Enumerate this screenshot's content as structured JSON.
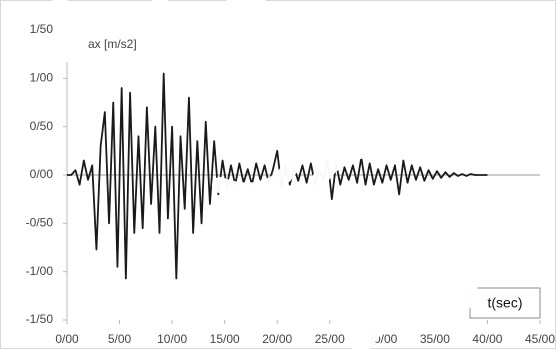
{
  "chart_data": {
    "type": "line",
    "y_label": "ax [m/s2]",
    "x_label": "t(sec)",
    "x": [
      0,
      0.4,
      0.8,
      1.2,
      1.6,
      2,
      2.4,
      2.8,
      3.2,
      3.6,
      4,
      4.4,
      4.8,
      5.2,
      5.6,
      6,
      6.4,
      6.8,
      7.2,
      7.6,
      8,
      8.4,
      8.8,
      9.2,
      9.6,
      10,
      10.4,
      10.8,
      11.2,
      11.6,
      12,
      12.4,
      12.8,
      13.2,
      13.6,
      14,
      14.4,
      14.8,
      15.2,
      15.6,
      16,
      16.4,
      16.8,
      17.2,
      17.6,
      18,
      18.4,
      18.8,
      19.2,
      19.6,
      20,
      20.4,
      20.8,
      21.2,
      21.6,
      22,
      22.4,
      22.8,
      23.2,
      23.6,
      24,
      24.4,
      24.8,
      25.2,
      25.6,
      26,
      26.4,
      26.8,
      27.2,
      27.6,
      28,
      28.4,
      28.8,
      29.2,
      29.6,
      30,
      30.4,
      30.8,
      31.2,
      31.6,
      32,
      32.4,
      32.8,
      33.2,
      33.6,
      34,
      34.4,
      34.8,
      35.2,
      35.6,
      36,
      36.4,
      36.8,
      37.2,
      37.6,
      38,
      38.4,
      38.8,
      39.2,
      39.6,
      40
    ],
    "series": [
      {
        "color": "#1a1a1a",
        "values": [
          0,
          0,
          0.05,
          -0.1,
          0.15,
          -0.05,
          0.1,
          -0.77,
          0.3,
          0.65,
          -0.5,
          0.75,
          -0.95,
          0.9,
          -1.07,
          0.85,
          -0.6,
          0.4,
          -0.55,
          0.7,
          -0.3,
          0.5,
          -0.6,
          1.05,
          -0.45,
          0.5,
          -1.07,
          0.4,
          -0.35,
          0.8,
          -0.6,
          0.35,
          -0.5,
          0.55,
          -0.3,
          0.35,
          -0.2,
          0.15,
          -0.12,
          0.1,
          -0.1,
          0.12,
          -0.08,
          0.06,
          -0.1,
          0.12,
          -0.05,
          0.1,
          -0.08,
          0.06,
          0.25,
          -0.12,
          0.1,
          -0.1,
          0.08,
          -0.06,
          0.1,
          -0.08,
          0.12,
          -0.1,
          0.06,
          -0.05,
          0.15,
          -0.25,
          0.12,
          -0.1,
          0.08,
          -0.05,
          0.1,
          -0.08,
          0.18,
          -0.1,
          0.12,
          -0.1,
          0.06,
          -0.08,
          0.1,
          -0.05,
          0.1,
          -0.2,
          0.15,
          -0.08,
          0.1,
          -0.05,
          0.08,
          -0.06,
          0.05,
          -0.04,
          0.04,
          -0.03,
          0.03,
          -0.02,
          0.02,
          -0.01,
          0.01,
          -0.01,
          0.01,
          0,
          0,
          0,
          0
        ]
      }
    ],
    "xlim": [
      0,
      45
    ],
    "xticks": [
      {
        "value": 0,
        "label": "0/00"
      },
      {
        "value": 5,
        "label": "5/00"
      },
      {
        "value": 10,
        "label": "10/00"
      },
      {
        "value": 15,
        "label": "15/00"
      },
      {
        "value": 20,
        "label": "20/00"
      },
      {
        "value": 25,
        "label": "25/00"
      },
      {
        "value": 30,
        "label": "30/00"
      },
      {
        "value": 35,
        "label": "35/00"
      },
      {
        "value": 40,
        "label": "40/00"
      },
      {
        "value": 45,
        "label": "45/00"
      }
    ],
    "ylim": [
      -1.5,
      1.5
    ],
    "yticks": [
      {
        "value": -1.5,
        "label": "-1/50"
      },
      {
        "value": -1,
        "label": "-1/00"
      },
      {
        "value": -0.5,
        "label": "-0/50"
      },
      {
        "value": 0,
        "label": "0/00"
      },
      {
        "value": 0.5,
        "label": "0/50"
      },
      {
        "value": 1,
        "label": "1/00"
      },
      {
        "value": 1.5,
        "label": "1/50"
      }
    ]
  }
}
